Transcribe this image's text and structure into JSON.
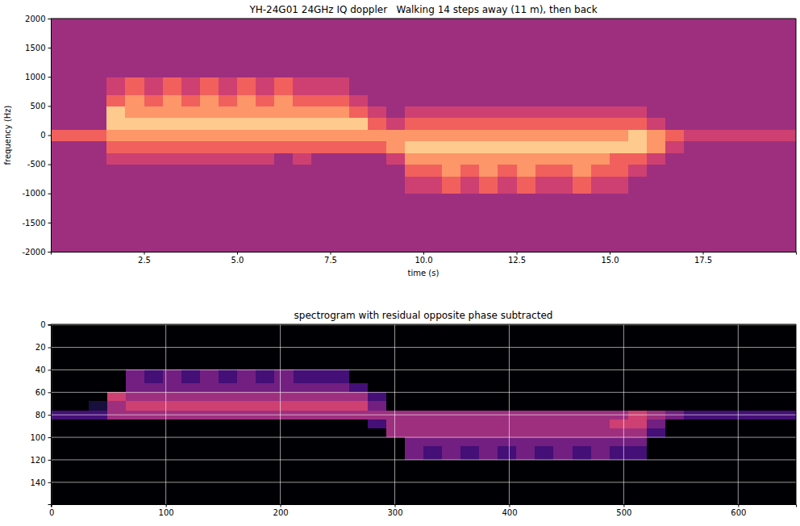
{
  "chart_data": [
    {
      "type": "heatmap",
      "title": "YH-24G01 24GHz IQ doppler   Walking 14 steps away (11 m), then back",
      "x_label": "time (s)",
      "y_label": "frequency (Hz)",
      "color": "magma",
      "zlim": [
        0,
        9
      ],
      "xlim": [
        0,
        20
      ],
      "ylim": [
        -2000,
        2000
      ],
      "xticks": [
        2.5,
        {
          "value": 5,
          "label": "5.0"
        },
        7.5,
        {
          "value": 10,
          "label": "10.0"
        },
        12.5,
        {
          "value": 15,
          "label": "15.0"
        },
        17.5
      ],
      "yticks": [
        -2000,
        -1500,
        -1000,
        -500,
        0,
        500,
        1000,
        1500,
        2000
      ],
      "grid": false,
      "x_edges": [
        0,
        0.5,
        1,
        1.5,
        2,
        2.5,
        3,
        3.5,
        4,
        4.5,
        5,
        5.5,
        6,
        6.5,
        7,
        7.5,
        8,
        8.5,
        9,
        9.5,
        10,
        10.5,
        11,
        11.5,
        12,
        12.5,
        13,
        13.5,
        14,
        14.5,
        15,
        15.5,
        16,
        16.5,
        17,
        17.5,
        18,
        18.5,
        19,
        19.5,
        20
      ],
      "y_edges": [
        -2000,
        -1500,
        -1000,
        -700,
        -500,
        -300,
        -100,
        100,
        300,
        500,
        700,
        1000,
        1500,
        2000
      ],
      "z": [
        [
          4,
          4,
          4,
          4,
          4,
          4,
          4,
          4,
          4,
          4,
          4,
          4,
          4,
          4,
          4,
          4,
          4,
          4,
          4,
          4,
          4,
          4,
          4,
          4,
          4,
          4,
          4,
          4,
          4,
          4,
          4,
          4,
          4,
          4,
          4,
          4,
          4,
          4,
          4,
          4
        ],
        [
          4,
          4,
          4,
          4,
          4,
          4,
          4,
          4,
          4,
          4,
          4,
          4,
          4,
          4,
          4,
          4,
          4,
          4,
          4,
          4,
          4,
          4,
          4,
          4,
          4,
          4,
          4,
          4,
          4,
          4,
          4,
          4,
          4,
          4,
          4,
          4,
          4,
          4,
          4,
          4
        ],
        [
          4,
          4,
          4,
          4,
          4,
          4,
          4,
          4,
          4,
          4,
          4,
          4,
          4,
          4,
          4,
          4,
          4,
          4,
          4,
          5,
          5,
          6,
          5,
          6,
          5,
          6,
          5,
          5,
          6,
          5,
          5,
          4,
          4,
          4,
          4,
          4,
          4,
          4,
          4,
          4
        ],
        [
          4,
          4,
          4,
          4,
          4,
          4,
          4,
          4,
          4,
          4,
          4,
          4,
          4,
          4,
          4,
          4,
          4,
          4,
          4,
          6,
          6,
          7,
          6,
          7,
          6,
          7,
          6,
          6,
          7,
          6,
          6,
          5,
          4,
          4,
          4,
          4,
          4,
          4,
          4,
          4
        ],
        [
          4,
          4,
          4,
          5,
          5,
          5,
          5,
          5,
          5,
          5,
          5,
          5,
          4,
          5,
          4,
          4,
          4,
          4,
          5,
          7,
          7,
          7,
          7,
          7,
          7,
          7,
          7,
          7,
          7,
          7,
          6,
          6,
          5,
          4,
          4,
          4,
          4,
          4,
          4,
          4
        ],
        [
          4,
          4,
          4,
          6,
          6,
          6,
          6,
          6,
          6,
          6,
          6,
          6,
          6,
          6,
          6,
          6,
          6,
          6,
          7,
          8,
          8,
          8,
          8,
          8,
          8,
          8,
          8,
          8,
          8,
          8,
          8,
          8,
          7,
          5,
          4,
          4,
          4,
          4,
          4,
          4
        ],
        [
          6,
          6,
          6,
          7,
          7,
          7,
          7,
          7,
          7,
          7,
          7,
          7,
          7,
          7,
          7,
          7,
          7,
          7,
          7,
          7,
          7,
          7,
          7,
          7,
          7,
          7,
          7,
          7,
          7,
          7,
          7,
          8,
          7,
          6,
          5,
          5,
          5,
          5,
          5,
          5
        ],
        [
          4,
          4,
          4,
          8,
          8,
          8,
          8,
          8,
          8,
          8,
          8,
          8,
          8,
          8,
          8,
          8,
          8,
          6,
          5,
          6,
          6,
          6,
          6,
          6,
          6,
          6,
          6,
          6,
          6,
          6,
          6,
          6,
          5,
          4,
          4,
          4,
          4,
          4,
          4,
          4
        ],
        [
          4,
          4,
          4,
          8,
          7,
          7,
          7,
          7,
          7,
          7,
          7,
          7,
          7,
          7,
          7,
          7,
          6,
          5,
          4,
          5,
          5,
          5,
          5,
          5,
          5,
          5,
          5,
          5,
          5,
          5,
          5,
          5,
          4,
          4,
          4,
          4,
          4,
          4,
          4,
          4
        ],
        [
          4,
          4,
          4,
          6,
          7,
          6,
          7,
          6,
          7,
          6,
          7,
          6,
          7,
          6,
          6,
          6,
          5,
          4,
          4,
          4,
          4,
          4,
          4,
          4,
          4,
          4,
          4,
          4,
          4,
          4,
          4,
          4,
          4,
          4,
          4,
          4,
          4,
          4,
          4,
          4
        ],
        [
          4,
          4,
          4,
          5,
          6,
          5,
          6,
          5,
          6,
          5,
          6,
          5,
          6,
          5,
          5,
          5,
          4,
          4,
          4,
          4,
          4,
          4,
          4,
          4,
          4,
          4,
          4,
          4,
          4,
          4,
          4,
          4,
          4,
          4,
          4,
          4,
          4,
          4,
          4,
          4
        ],
        [
          4,
          4,
          4,
          4,
          4,
          4,
          4,
          4,
          4,
          4,
          4,
          4,
          4,
          4,
          4,
          4,
          4,
          4,
          4,
          4,
          4,
          4,
          4,
          4,
          4,
          4,
          4,
          4,
          4,
          4,
          4,
          4,
          4,
          4,
          4,
          4,
          4,
          4,
          4,
          4
        ],
        [
          4,
          4,
          4,
          4,
          4,
          4,
          4,
          4,
          4,
          4,
          4,
          4,
          4,
          4,
          4,
          4,
          4,
          4,
          4,
          4,
          4,
          4,
          4,
          4,
          4,
          4,
          4,
          4,
          4,
          4,
          4,
          4,
          4,
          4,
          4,
          4,
          4,
          4,
          4,
          4
        ]
      ]
    },
    {
      "type": "heatmap",
      "title": "spectrogram with residual opposite phase subtracted",
      "color": "magma",
      "zlim": [
        0,
        9
      ],
      "xlim": [
        -0.5,
        650.5
      ],
      "ylim": [
        159.5,
        -0.5
      ],
      "xticks": [
        0,
        100,
        200,
        300,
        400,
        500,
        600
      ],
      "yticks": [
        0,
        20,
        40,
        60,
        80,
        100,
        120,
        140
      ],
      "grid": true,
      "x_edges": [
        0,
        16.25,
        32.5,
        48.75,
        65,
        81.25,
        97.5,
        113.75,
        130,
        146.25,
        162.5,
        178.75,
        195,
        211.25,
        227.5,
        243.75,
        260,
        276.25,
        292.5,
        308.75,
        325,
        341.25,
        357.5,
        373.75,
        390,
        406.25,
        422.5,
        438.75,
        455,
        471.25,
        487.5,
        503.75,
        520,
        536.25,
        552.5,
        568.75,
        585,
        601.25,
        617.5,
        633.75,
        650
      ],
      "y_edges": [
        0,
        20,
        40,
        52,
        60,
        68,
        76,
        84,
        92,
        100,
        108,
        120,
        140,
        160
      ],
      "z": [
        [
          0,
          0,
          0,
          0,
          0,
          0,
          0,
          0,
          0,
          0,
          0,
          0,
          0,
          0,
          0,
          0,
          0,
          0,
          0,
          0,
          0,
          0,
          0,
          0,
          0,
          0,
          0,
          0,
          0,
          0,
          0,
          0,
          0,
          0,
          0,
          0,
          0,
          0,
          0,
          0
        ],
        [
          0,
          0,
          0,
          0,
          0,
          0,
          0,
          0,
          0,
          0,
          0,
          0,
          0,
          0,
          0,
          0,
          0,
          0,
          0,
          0,
          0,
          0,
          0,
          0,
          0,
          0,
          0,
          0,
          0,
          0,
          0,
          0,
          0,
          0,
          0,
          0,
          0,
          0,
          0,
          0
        ],
        [
          0,
          0,
          0,
          0,
          3,
          2,
          3,
          2,
          3,
          2,
          3,
          2,
          3,
          2,
          2,
          2,
          0,
          0,
          0,
          0,
          0,
          0,
          0,
          0,
          0,
          0,
          0,
          0,
          0,
          0,
          0,
          0,
          0,
          0,
          0,
          0,
          0,
          0,
          0,
          0
        ],
        [
          0,
          0,
          0,
          0,
          3,
          3,
          3,
          3,
          3,
          3,
          3,
          3,
          3,
          3,
          3,
          3,
          2,
          0,
          0,
          0,
          0,
          0,
          0,
          0,
          0,
          0,
          0,
          0,
          0,
          0,
          0,
          0,
          0,
          0,
          0,
          0,
          0,
          0,
          0,
          0
        ],
        [
          0,
          0,
          0,
          5,
          4,
          4,
          4,
          4,
          4,
          4,
          4,
          4,
          4,
          4,
          4,
          4,
          4,
          2,
          0,
          0,
          0,
          0,
          0,
          0,
          0,
          0,
          0,
          0,
          0,
          0,
          0,
          0,
          0,
          0,
          0,
          0,
          0,
          0,
          0,
          0
        ],
        [
          0,
          0,
          1,
          4,
          5,
          5,
          5,
          5,
          5,
          5,
          5,
          5,
          5,
          5,
          5,
          5,
          5,
          3,
          0,
          0,
          0,
          0,
          0,
          0,
          0,
          0,
          0,
          0,
          0,
          0,
          0,
          0,
          0,
          0,
          0,
          0,
          0,
          0,
          0,
          0
        ],
        [
          2,
          2,
          2,
          4,
          4,
          4,
          4,
          4,
          4,
          4,
          4,
          4,
          4,
          4,
          4,
          4,
          4,
          4,
          4,
          4,
          4,
          4,
          4,
          4,
          4,
          4,
          4,
          4,
          4,
          4,
          4,
          5,
          4,
          3,
          2,
          2,
          2,
          2,
          2,
          2
        ],
        [
          0,
          0,
          0,
          0,
          0,
          0,
          0,
          0,
          0,
          0,
          0,
          0,
          0,
          0,
          0,
          0,
          0,
          2,
          4,
          4,
          4,
          4,
          4,
          4,
          4,
          4,
          4,
          4,
          4,
          4,
          5,
          5,
          3,
          0,
          0,
          0,
          0,
          0,
          0,
          0
        ],
        [
          0,
          0,
          0,
          0,
          0,
          0,
          0,
          0,
          0,
          0,
          0,
          0,
          0,
          0,
          0,
          0,
          0,
          0,
          4,
          4,
          4,
          4,
          4,
          4,
          4,
          4,
          4,
          4,
          4,
          4,
          4,
          4,
          2,
          0,
          0,
          0,
          0,
          0,
          0,
          0
        ],
        [
          0,
          0,
          0,
          0,
          0,
          0,
          0,
          0,
          0,
          0,
          0,
          0,
          0,
          0,
          0,
          0,
          0,
          0,
          0,
          3,
          3,
          3,
          3,
          3,
          3,
          3,
          3,
          3,
          3,
          3,
          3,
          3,
          0,
          0,
          0,
          0,
          0,
          0,
          0,
          0
        ],
        [
          0,
          0,
          0,
          0,
          0,
          0,
          0,
          0,
          0,
          0,
          0,
          0,
          0,
          0,
          0,
          0,
          0,
          0,
          0,
          3,
          2,
          3,
          2,
          3,
          2,
          3,
          2,
          3,
          2,
          3,
          2,
          2,
          0,
          0,
          0,
          0,
          0,
          0,
          0,
          0
        ],
        [
          0,
          0,
          0,
          0,
          0,
          0,
          0,
          0,
          0,
          0,
          0,
          0,
          0,
          0,
          0,
          0,
          0,
          0,
          0,
          0,
          0,
          0,
          0,
          0,
          0,
          0,
          0,
          0,
          0,
          0,
          0,
          0,
          0,
          0,
          0,
          0,
          0,
          0,
          0,
          0
        ],
        [
          0,
          0,
          0,
          0,
          0,
          0,
          0,
          0,
          0,
          0,
          0,
          0,
          0,
          0,
          0,
          0,
          0,
          0,
          0,
          0,
          0,
          0,
          0,
          0,
          0,
          0,
          0,
          0,
          0,
          0,
          0,
          0,
          0,
          0,
          0,
          0,
          0,
          0,
          0,
          0
        ]
      ]
    }
  ]
}
